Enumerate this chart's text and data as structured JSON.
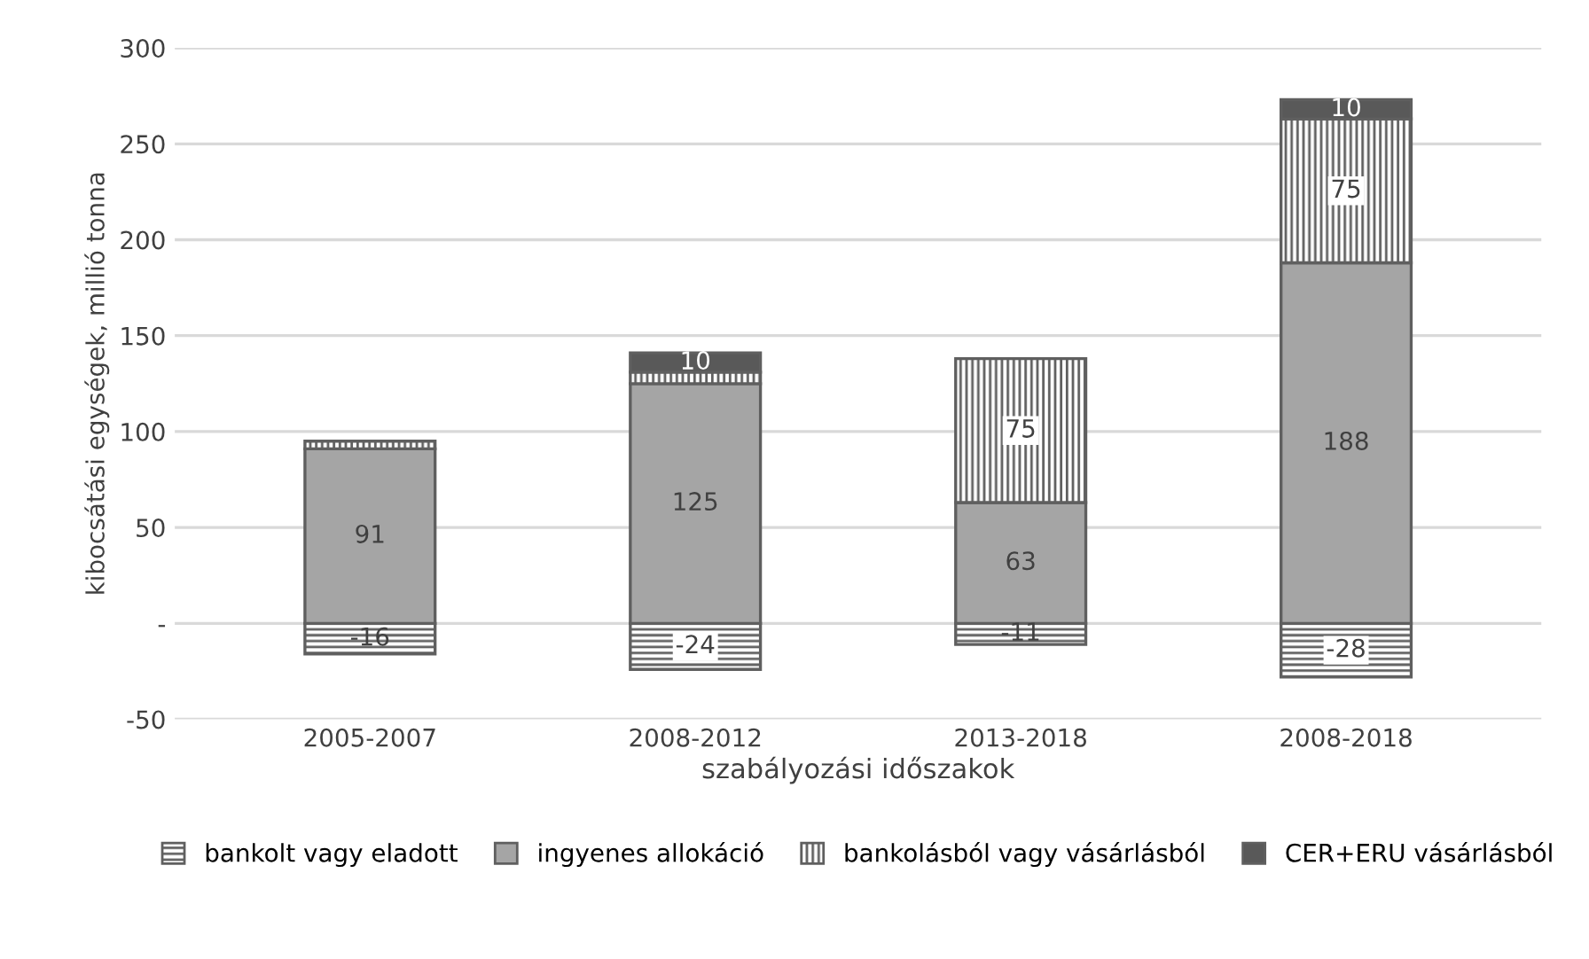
{
  "chart_data": {
    "type": "bar",
    "stacked": true,
    "xlabel": "szabályozási időszakok",
    "ylabel": "kibocsátási egységek, millió tonna",
    "categories": [
      "2005-2007",
      "2008-2012",
      "2013-2018",
      "2008-2018"
    ],
    "series": [
      {
        "name": "bankolt vagy eladott",
        "color": "#5f5f5f",
        "values": [
          -16,
          -24,
          -11,
          -28
        ],
        "value_labels": [
          "-16",
          "-24",
          "-11",
          "-28"
        ]
      },
      {
        "name": "ingyenes allokáció",
        "color": "#a5a5a5",
        "values": [
          91,
          125,
          63,
          188
        ],
        "value_labels": [
          "91",
          "125",
          "63",
          "188"
        ]
      },
      {
        "name": "bankolásból vagy vásárlásból",
        "color": "#5f5f5f",
        "values": [
          4,
          6,
          75,
          75
        ],
        "value_labels": [
          null,
          null,
          "75",
          "75"
        ]
      },
      {
        "name": "CER+ERU vásárlásból",
        "color": "#595959",
        "values": [
          null,
          10,
          null,
          10
        ],
        "value_labels": [
          null,
          "10",
          null,
          "10"
        ]
      }
    ],
    "ylim": [
      -50,
      300
    ],
    "yticks": [
      -50,
      {
        "value": 0,
        "label": "-"
      },
      50,
      100,
      150,
      200,
      250,
      300
    ],
    "grid": "y",
    "legend": "bottom"
  }
}
